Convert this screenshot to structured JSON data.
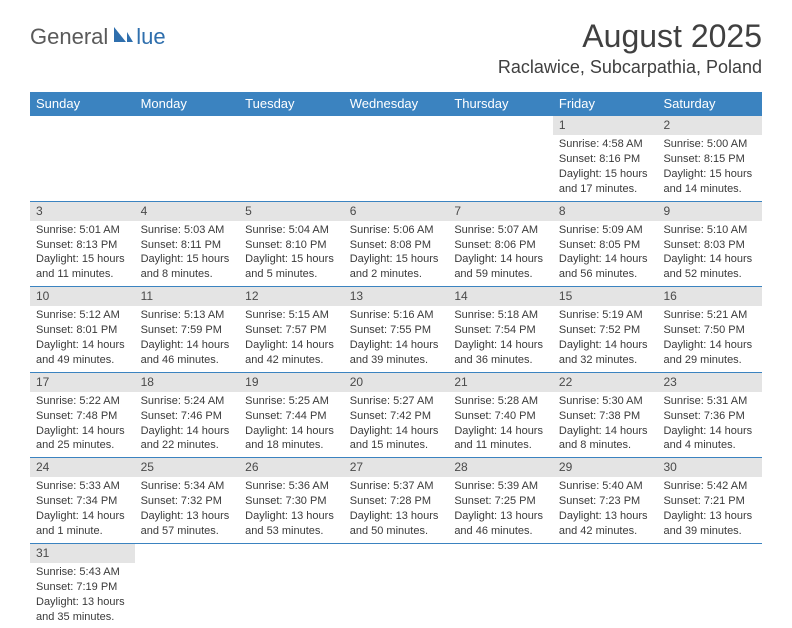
{
  "logo": {
    "part1": "General",
    "part2": "lue"
  },
  "title": "August 2025",
  "location": "Raclawice, Subcarpathia, Poland",
  "colors": {
    "header_bg": "#3b83c0",
    "week_border": "#3b83c0",
    "daynum_bg": "#e4e4e4",
    "text": "#3a3a3a",
    "logo_gray": "#5a5a5a",
    "logo_blue": "#2f6fad",
    "page_bg": "#ffffff"
  },
  "weekdays": [
    "Sunday",
    "Monday",
    "Tuesday",
    "Wednesday",
    "Thursday",
    "Friday",
    "Saturday"
  ],
  "weeks": [
    [
      {
        "empty": true
      },
      {
        "empty": true
      },
      {
        "empty": true
      },
      {
        "empty": true
      },
      {
        "empty": true
      },
      {
        "day": "1",
        "sunrise": "Sunrise: 4:58 AM",
        "sunset": "Sunset: 8:16 PM",
        "daylight": "Daylight: 15 hours and 17 minutes."
      },
      {
        "day": "2",
        "sunrise": "Sunrise: 5:00 AM",
        "sunset": "Sunset: 8:15 PM",
        "daylight": "Daylight: 15 hours and 14 minutes."
      }
    ],
    [
      {
        "day": "3",
        "sunrise": "Sunrise: 5:01 AM",
        "sunset": "Sunset: 8:13 PM",
        "daylight": "Daylight: 15 hours and 11 minutes."
      },
      {
        "day": "4",
        "sunrise": "Sunrise: 5:03 AM",
        "sunset": "Sunset: 8:11 PM",
        "daylight": "Daylight: 15 hours and 8 minutes."
      },
      {
        "day": "5",
        "sunrise": "Sunrise: 5:04 AM",
        "sunset": "Sunset: 8:10 PM",
        "daylight": "Daylight: 15 hours and 5 minutes."
      },
      {
        "day": "6",
        "sunrise": "Sunrise: 5:06 AM",
        "sunset": "Sunset: 8:08 PM",
        "daylight": "Daylight: 15 hours and 2 minutes."
      },
      {
        "day": "7",
        "sunrise": "Sunrise: 5:07 AM",
        "sunset": "Sunset: 8:06 PM",
        "daylight": "Daylight: 14 hours and 59 minutes."
      },
      {
        "day": "8",
        "sunrise": "Sunrise: 5:09 AM",
        "sunset": "Sunset: 8:05 PM",
        "daylight": "Daylight: 14 hours and 56 minutes."
      },
      {
        "day": "9",
        "sunrise": "Sunrise: 5:10 AM",
        "sunset": "Sunset: 8:03 PM",
        "daylight": "Daylight: 14 hours and 52 minutes."
      }
    ],
    [
      {
        "day": "10",
        "sunrise": "Sunrise: 5:12 AM",
        "sunset": "Sunset: 8:01 PM",
        "daylight": "Daylight: 14 hours and 49 minutes."
      },
      {
        "day": "11",
        "sunrise": "Sunrise: 5:13 AM",
        "sunset": "Sunset: 7:59 PM",
        "daylight": "Daylight: 14 hours and 46 minutes."
      },
      {
        "day": "12",
        "sunrise": "Sunrise: 5:15 AM",
        "sunset": "Sunset: 7:57 PM",
        "daylight": "Daylight: 14 hours and 42 minutes."
      },
      {
        "day": "13",
        "sunrise": "Sunrise: 5:16 AM",
        "sunset": "Sunset: 7:55 PM",
        "daylight": "Daylight: 14 hours and 39 minutes."
      },
      {
        "day": "14",
        "sunrise": "Sunrise: 5:18 AM",
        "sunset": "Sunset: 7:54 PM",
        "daylight": "Daylight: 14 hours and 36 minutes."
      },
      {
        "day": "15",
        "sunrise": "Sunrise: 5:19 AM",
        "sunset": "Sunset: 7:52 PM",
        "daylight": "Daylight: 14 hours and 32 minutes."
      },
      {
        "day": "16",
        "sunrise": "Sunrise: 5:21 AM",
        "sunset": "Sunset: 7:50 PM",
        "daylight": "Daylight: 14 hours and 29 minutes."
      }
    ],
    [
      {
        "day": "17",
        "sunrise": "Sunrise: 5:22 AM",
        "sunset": "Sunset: 7:48 PM",
        "daylight": "Daylight: 14 hours and 25 minutes."
      },
      {
        "day": "18",
        "sunrise": "Sunrise: 5:24 AM",
        "sunset": "Sunset: 7:46 PM",
        "daylight": "Daylight: 14 hours and 22 minutes."
      },
      {
        "day": "19",
        "sunrise": "Sunrise: 5:25 AM",
        "sunset": "Sunset: 7:44 PM",
        "daylight": "Daylight: 14 hours and 18 minutes."
      },
      {
        "day": "20",
        "sunrise": "Sunrise: 5:27 AM",
        "sunset": "Sunset: 7:42 PM",
        "daylight": "Daylight: 14 hours and 15 minutes."
      },
      {
        "day": "21",
        "sunrise": "Sunrise: 5:28 AM",
        "sunset": "Sunset: 7:40 PM",
        "daylight": "Daylight: 14 hours and 11 minutes."
      },
      {
        "day": "22",
        "sunrise": "Sunrise: 5:30 AM",
        "sunset": "Sunset: 7:38 PM",
        "daylight": "Daylight: 14 hours and 8 minutes."
      },
      {
        "day": "23",
        "sunrise": "Sunrise: 5:31 AM",
        "sunset": "Sunset: 7:36 PM",
        "daylight": "Daylight: 14 hours and 4 minutes."
      }
    ],
    [
      {
        "day": "24",
        "sunrise": "Sunrise: 5:33 AM",
        "sunset": "Sunset: 7:34 PM",
        "daylight": "Daylight: 14 hours and 1 minute."
      },
      {
        "day": "25",
        "sunrise": "Sunrise: 5:34 AM",
        "sunset": "Sunset: 7:32 PM",
        "daylight": "Daylight: 13 hours and 57 minutes."
      },
      {
        "day": "26",
        "sunrise": "Sunrise: 5:36 AM",
        "sunset": "Sunset: 7:30 PM",
        "daylight": "Daylight: 13 hours and 53 minutes."
      },
      {
        "day": "27",
        "sunrise": "Sunrise: 5:37 AM",
        "sunset": "Sunset: 7:28 PM",
        "daylight": "Daylight: 13 hours and 50 minutes."
      },
      {
        "day": "28",
        "sunrise": "Sunrise: 5:39 AM",
        "sunset": "Sunset: 7:25 PM",
        "daylight": "Daylight: 13 hours and 46 minutes."
      },
      {
        "day": "29",
        "sunrise": "Sunrise: 5:40 AM",
        "sunset": "Sunset: 7:23 PM",
        "daylight": "Daylight: 13 hours and 42 minutes."
      },
      {
        "day": "30",
        "sunrise": "Sunrise: 5:42 AM",
        "sunset": "Sunset: 7:21 PM",
        "daylight": "Daylight: 13 hours and 39 minutes."
      }
    ],
    [
      {
        "day": "31",
        "sunrise": "Sunrise: 5:43 AM",
        "sunset": "Sunset: 7:19 PM",
        "daylight": "Daylight: 13 hours and 35 minutes."
      },
      {
        "empty": true
      },
      {
        "empty": true
      },
      {
        "empty": true
      },
      {
        "empty": true
      },
      {
        "empty": true
      },
      {
        "empty": true
      }
    ]
  ]
}
